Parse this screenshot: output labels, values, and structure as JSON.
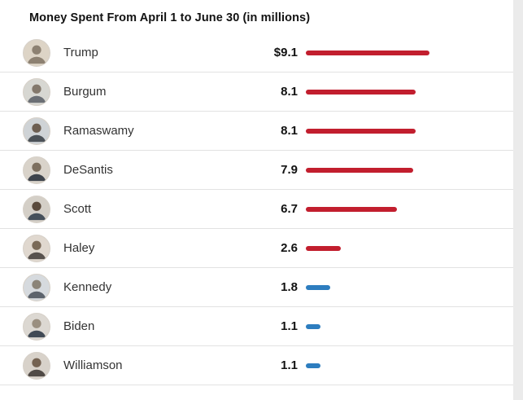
{
  "chart_data": {
    "type": "bar",
    "orientation": "horizontal",
    "title": "Money Spent From April 1 to June 30 (in millions)",
    "categories": [
      "Trump",
      "Burgum",
      "Ramaswamy",
      "DeSantis",
      "Scott",
      "Haley",
      "Kennedy",
      "Biden",
      "Williamson"
    ],
    "values": [
      9.1,
      8.1,
      8.1,
      7.9,
      6.7,
      2.6,
      1.8,
      1.1,
      1.1
    ],
    "value_labels": [
      "$9.1",
      "8.1",
      "8.1",
      "7.9",
      "6.7",
      "2.6",
      "1.8",
      "1.1",
      "1.1"
    ],
    "parties": [
      "R",
      "R",
      "R",
      "R",
      "R",
      "R",
      "D",
      "D",
      "D"
    ],
    "xlim": [
      0,
      9.1
    ],
    "legend": "none",
    "grid": "off"
  },
  "colors": {
    "republican_bar": "#c21e2e",
    "democrat_bar": "#2d7dbf",
    "row_divider": "#e2e2e2",
    "title_text": "#121212",
    "name_text": "#333333",
    "value_text": "#121212"
  }
}
